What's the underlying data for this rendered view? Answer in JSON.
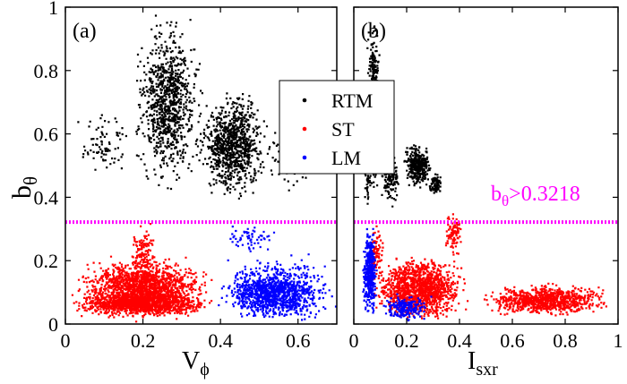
{
  "chart_data": [
    {
      "panel_label": "(a)",
      "type": "scatter",
      "xlabel": "V",
      "xlabel_sub": "ϕ",
      "ylabel": "b",
      "ylabel_sub": "θ",
      "xlim": [
        0,
        0.7
      ],
      "ylim": [
        0,
        1
      ],
      "x_ticks": [
        "0",
        "0.2",
        "0.4",
        "0.6"
      ],
      "x_tick_values": [
        0,
        0.2,
        0.4,
        0.6
      ],
      "y_ticks": [
        "0",
        "0.2",
        "0.4",
        "0.6",
        "0.8",
        "1"
      ],
      "y_tick_values": [
        0,
        0.2,
        0.4,
        0.6,
        0.8,
        1
      ],
      "threshold": 0.3218,
      "series": [
        {
          "name": "RTM",
          "color": "#000000",
          "clusters": [
            {
              "x": [
                0.17,
                0.36
              ],
              "y": [
                0.4,
                0.99
              ],
              "n": 900
            },
            {
              "x": [
                0.33,
                0.53
              ],
              "y": [
                0.38,
                0.75
              ],
              "n": 900
            },
            {
              "x": [
                0.02,
                0.18
              ],
              "y": [
                0.45,
                0.7
              ],
              "n": 80
            },
            {
              "x": [
                0.5,
                0.66
              ],
              "y": [
                0.4,
                0.66
              ],
              "n": 110
            }
          ]
        },
        {
          "name": "ST",
          "color": "#ff0000",
          "clusters": [
            {
              "x": [
                0.0,
                0.4
              ],
              "y": [
                0.0,
                0.22
              ],
              "n": 1700
            },
            {
              "x": [
                0.0,
                0.4
              ],
              "y": [
                0.02,
                0.1
              ],
              "n": 900
            },
            {
              "x": [
                0.16,
                0.24
              ],
              "y": [
                0.1,
                0.34
              ],
              "n": 130
            }
          ]
        },
        {
          "name": "LM",
          "color": "#0000ff",
          "clusters": [
            {
              "x": [
                0.38,
                0.7
              ],
              "y": [
                0.0,
                0.18
              ],
              "n": 900
            },
            {
              "x": [
                0.38,
                0.7
              ],
              "y": [
                0.02,
                0.24
              ],
              "n": 300
            },
            {
              "x": [
                0.4,
                0.56
              ],
              "y": [
                0.22,
                0.32
              ],
              "n": 60
            }
          ]
        }
      ]
    },
    {
      "panel_label": "(b)",
      "type": "scatter",
      "xlabel": "I",
      "xlabel_sub": "sxr",
      "xlim": [
        0,
        1
      ],
      "ylim": [
        0,
        1
      ],
      "x_ticks": [
        "0",
        "0.2",
        "0.4",
        "0.6",
        "0.8",
        "1"
      ],
      "x_tick_values": [
        0,
        0.2,
        0.4,
        0.6,
        0.8,
        1
      ],
      "threshold": 0.3218,
      "annotation": "b",
      "annotation_sub": "θ",
      "annotation_rest": ">0.3218",
      "series": [
        {
          "name": "RTM",
          "color": "#000000",
          "clusters": [
            {
              "x": [
                0.05,
                0.1
              ],
              "y": [
                0.38,
                0.99
              ],
              "n": 450
            },
            {
              "x": [
                0.1,
                0.18
              ],
              "y": [
                0.36,
                0.55
              ],
              "n": 120
            },
            {
              "x": [
                0.18,
                0.3
              ],
              "y": [
                0.42,
                0.58
              ],
              "n": 350
            },
            {
              "x": [
                0.28,
                0.34
              ],
              "y": [
                0.4,
                0.48
              ],
              "n": 80
            },
            {
              "x": [
                0.03,
                0.07
              ],
              "y": [
                0.35,
                0.62
              ],
              "n": 60
            }
          ]
        },
        {
          "name": "ST",
          "color": "#ff0000",
          "clusters": [
            {
              "x": [
                0.05,
                0.45
              ],
              "y": [
                0.0,
                0.22
              ],
              "n": 1300
            },
            {
              "x": [
                0.45,
                1.0
              ],
              "y": [
                0.02,
                0.13
              ],
              "n": 900
            },
            {
              "x": [
                0.33,
                0.42
              ],
              "y": [
                0.2,
                0.36
              ],
              "n": 90
            },
            {
              "x": [
                0.05,
                0.12
              ],
              "y": [
                0.1,
                0.35
              ],
              "n": 90
            }
          ]
        },
        {
          "name": "LM",
          "color": "#0000ff",
          "clusters": [
            {
              "x": [
                0.03,
                0.09
              ],
              "y": [
                0.0,
                0.32
              ],
              "n": 420
            },
            {
              "x": [
                0.09,
                0.3
              ],
              "y": [
                0.0,
                0.1
              ],
              "n": 200
            }
          ]
        }
      ]
    }
  ],
  "legend": {
    "position": "top-center",
    "entries": [
      {
        "name": "RTM",
        "color": "#000000"
      },
      {
        "name": "ST",
        "color": "#ff0000"
      },
      {
        "name": "LM",
        "color": "#0000ff"
      }
    ]
  },
  "threshold_color": "#ff00ff"
}
